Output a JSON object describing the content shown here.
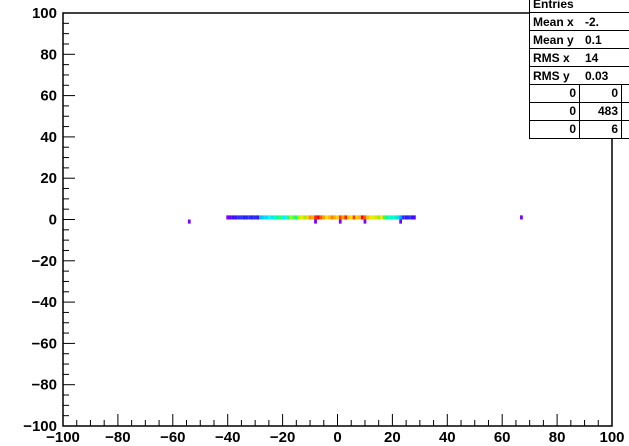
{
  "chart_data": {
    "type": "heatmap",
    "title": "",
    "xlabel": "",
    "ylabel": "",
    "xlim": [
      -100,
      100
    ],
    "ylim": [
      -100,
      100
    ],
    "x_ticks": [
      "-100",
      "-80",
      "-60",
      "-40",
      "-20",
      "0",
      "20",
      "40",
      "60",
      "80",
      "100"
    ],
    "y_ticks": [
      "100",
      "80",
      "60",
      "40",
      "20",
      "0",
      "-20",
      "-40",
      "-60",
      "-80",
      "-100"
    ],
    "bin_width": 1,
    "cells": [
      {
        "x": -54,
        "y": -1,
        "color": "#7a00ff"
      },
      {
        "x": -40,
        "y": 1,
        "color": "#7a00ff"
      },
      {
        "x": -39,
        "y": 1,
        "color": "#5a00ff"
      },
      {
        "x": -38,
        "y": 1,
        "color": "#3a10ff"
      },
      {
        "x": -37,
        "y": 1,
        "color": "#3a10ff"
      },
      {
        "x": -36,
        "y": 1,
        "color": "#2030ff"
      },
      {
        "x": -35,
        "y": 1,
        "color": "#2030ff"
      },
      {
        "x": -34,
        "y": 1,
        "color": "#3a10ff"
      },
      {
        "x": -33,
        "y": 1,
        "color": "#2030ff"
      },
      {
        "x": -32,
        "y": 1,
        "color": "#2030ff"
      },
      {
        "x": -31,
        "y": 1,
        "color": "#3a10ff"
      },
      {
        "x": -30,
        "y": 1,
        "color": "#2030ff"
      },
      {
        "x": -29,
        "y": 1,
        "color": "#3a10ff"
      },
      {
        "x": -28,
        "y": 1,
        "color": "#00c8ff"
      },
      {
        "x": -27,
        "y": 1,
        "color": "#00d0ff"
      },
      {
        "x": -26,
        "y": 1,
        "color": "#00d8ff"
      },
      {
        "x": -25,
        "y": 1,
        "color": "#00ffe0"
      },
      {
        "x": -24,
        "y": 1,
        "color": "#00e8ff"
      },
      {
        "x": -23,
        "y": 1,
        "color": "#00ffc0"
      },
      {
        "x": -22,
        "y": 1,
        "color": "#00ffa0"
      },
      {
        "x": -21,
        "y": 1,
        "color": "#30ff60"
      },
      {
        "x": -20,
        "y": 1,
        "color": "#00ffc8"
      },
      {
        "x": -19,
        "y": 1,
        "color": "#00f0ff"
      },
      {
        "x": -18,
        "y": 1,
        "color": "#20ff80"
      },
      {
        "x": -17,
        "y": 1,
        "color": "#a0ff00"
      },
      {
        "x": -16,
        "y": 1,
        "color": "#40ff40"
      },
      {
        "x": -15,
        "y": 1,
        "color": "#00ff90"
      },
      {
        "x": -14,
        "y": 1,
        "color": "#a0ff00"
      },
      {
        "x": -13,
        "y": 1,
        "color": "#ffe000"
      },
      {
        "x": -12,
        "y": 1,
        "color": "#80ff00"
      },
      {
        "x": -11,
        "y": 1,
        "color": "#ffd000"
      },
      {
        "x": -10,
        "y": 1,
        "color": "#ff9000"
      },
      {
        "x": -9,
        "y": 1,
        "color": "#ffb000"
      },
      {
        "x": -8,
        "y": 1,
        "color": "#ff2000"
      },
      {
        "x": -8,
        "y": -1,
        "color": "#7a00ff"
      },
      {
        "x": -7,
        "y": 1,
        "color": "#ff0000"
      },
      {
        "x": -6,
        "y": 1,
        "color": "#ff6000"
      },
      {
        "x": -5,
        "y": 1,
        "color": "#ffa000"
      },
      {
        "x": -4,
        "y": 1,
        "color": "#ffe000"
      },
      {
        "x": -3,
        "y": 1,
        "color": "#ffc000"
      },
      {
        "x": -2,
        "y": 1,
        "color": "#ff8000"
      },
      {
        "x": -1,
        "y": 1,
        "color": "#ffb000"
      },
      {
        "x": 0,
        "y": 1,
        "color": "#ffd000"
      },
      {
        "x": 1,
        "y": 1,
        "color": "#ff4000"
      },
      {
        "x": 1,
        "y": -1,
        "color": "#7a00ff"
      },
      {
        "x": 2,
        "y": 1,
        "color": "#ffa000"
      },
      {
        "x": 3,
        "y": 1,
        "color": "#ff2000"
      },
      {
        "x": 4,
        "y": 1,
        "color": "#ffc000"
      },
      {
        "x": 5,
        "y": 1,
        "color": "#ffe000"
      },
      {
        "x": 6,
        "y": 1,
        "color": "#ff4000"
      },
      {
        "x": 7,
        "y": 1,
        "color": "#ffd000"
      },
      {
        "x": 8,
        "y": 1,
        "color": "#ffb000"
      },
      {
        "x": 9,
        "y": 1,
        "color": "#ff0000"
      },
      {
        "x": 10,
        "y": 1,
        "color": "#ff6000"
      },
      {
        "x": 10,
        "y": -1,
        "color": "#7a00ff"
      },
      {
        "x": 11,
        "y": 1,
        "color": "#ffc000"
      },
      {
        "x": 12,
        "y": 1,
        "color": "#ffe000"
      },
      {
        "x": 13,
        "y": 1,
        "color": "#c0ff00"
      },
      {
        "x": 14,
        "y": 1,
        "color": "#ffd000"
      },
      {
        "x": 15,
        "y": 1,
        "color": "#80ff00"
      },
      {
        "x": 16,
        "y": 1,
        "color": "#ffe000"
      },
      {
        "x": 17,
        "y": 1,
        "color": "#40ff40"
      },
      {
        "x": 18,
        "y": 1,
        "color": "#00ff90"
      },
      {
        "x": 19,
        "y": 1,
        "color": "#00ffc0"
      },
      {
        "x": 20,
        "y": 1,
        "color": "#00f0ff"
      },
      {
        "x": 21,
        "y": 1,
        "color": "#00ffa0"
      },
      {
        "x": 22,
        "y": 1,
        "color": "#00d8ff"
      },
      {
        "x": 23,
        "y": 1,
        "color": "#00a0ff"
      },
      {
        "x": 23,
        "y": -1,
        "color": "#7a00ff"
      },
      {
        "x": 24,
        "y": 1,
        "color": "#2030ff"
      },
      {
        "x": 25,
        "y": 1,
        "color": "#3a10ff"
      },
      {
        "x": 26,
        "y": 1,
        "color": "#2030ff"
      },
      {
        "x": 27,
        "y": 1,
        "color": "#3a10ff"
      },
      {
        "x": 28,
        "y": 1,
        "color": "#5a00ff"
      },
      {
        "x": 67,
        "y": 1,
        "color": "#7a00ff"
      }
    ]
  },
  "stats_box": {
    "rows": [
      {
        "label": "Entries",
        "value": ""
      },
      {
        "label": "Mean x",
        "value": "-2."
      },
      {
        "label": "Mean y",
        "value": "0.1"
      },
      {
        "label": "RMS x",
        "value": "14"
      },
      {
        "label": "RMS y",
        "value": "0.03"
      }
    ],
    "grid": [
      [
        "0",
        "0",
        ""
      ],
      [
        "0",
        "483",
        ""
      ],
      [
        "0",
        "6",
        ""
      ]
    ]
  }
}
